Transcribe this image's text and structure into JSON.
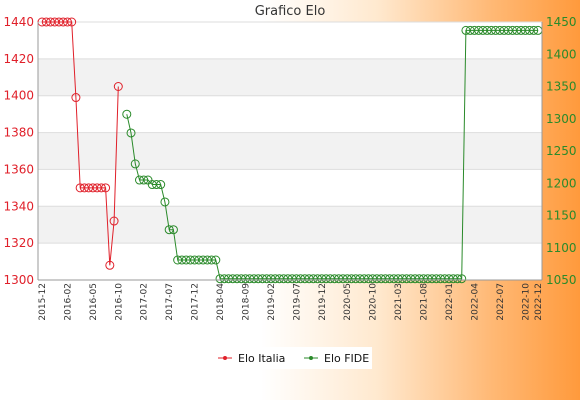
{
  "chart_data": {
    "type": "line",
    "title": "Grafico Elo",
    "xlabel": "",
    "ylabel": "",
    "y_left": {
      "range": [
        1300,
        1440
      ],
      "ticks": [
        1300,
        1320,
        1340,
        1360,
        1380,
        1400,
        1420,
        1440
      ],
      "color": "#e0202a"
    },
    "y_right": {
      "range": [
        1050,
        1450
      ],
      "ticks": [
        1050,
        1100,
        1150,
        1200,
        1250,
        1300,
        1350,
        1400,
        1450
      ],
      "color": "#2a8a2a"
    },
    "x_count": 118,
    "x_ticks": [
      {
        "i": 0,
        "label": "2015-12"
      },
      {
        "i": 6,
        "label": "2016-02"
      },
      {
        "i": 12,
        "label": "2016-05"
      },
      {
        "i": 18,
        "label": "2016-10"
      },
      {
        "i": 24,
        "label": "2017-02"
      },
      {
        "i": 30,
        "label": "2017-07"
      },
      {
        "i": 36,
        "label": "2017-12"
      },
      {
        "i": 42,
        "label": "2018-04"
      },
      {
        "i": 48,
        "label": "2018-09"
      },
      {
        "i": 54,
        "label": "2019-02"
      },
      {
        "i": 60,
        "label": "2019-07"
      },
      {
        "i": 66,
        "label": "2019-12"
      },
      {
        "i": 72,
        "label": "2020-05"
      },
      {
        "i": 78,
        "label": "2020-10"
      },
      {
        "i": 84,
        "label": "2021-03"
      },
      {
        "i": 90,
        "label": "2021-08"
      },
      {
        "i": 96,
        "label": "2022-01"
      },
      {
        "i": 102,
        "label": "2022-04"
      },
      {
        "i": 108,
        "label": "2022-07"
      },
      {
        "i": 114,
        "label": "2022-10"
      },
      {
        "i": 117,
        "label": "2022-12"
      }
    ],
    "grid": true,
    "legend_position": "bottom-center",
    "series": [
      {
        "name": "Elo Italia",
        "axis": "left",
        "color": "#e0202a",
        "points": [
          [
            0,
            1440
          ],
          [
            1,
            1440
          ],
          [
            2,
            1440
          ],
          [
            3,
            1440
          ],
          [
            4,
            1440
          ],
          [
            5,
            1440
          ],
          [
            6,
            1440
          ],
          [
            7,
            1440
          ],
          [
            8,
            1399
          ],
          [
            9,
            1350
          ],
          [
            10,
            1350
          ],
          [
            11,
            1350
          ],
          [
            12,
            1350
          ],
          [
            13,
            1350
          ],
          [
            14,
            1350
          ],
          [
            15,
            1350
          ],
          [
            16,
            1308
          ],
          [
            17,
            1332
          ],
          [
            18,
            1405
          ]
        ]
      },
      {
        "name": "Elo FIDE",
        "axis": "right",
        "color": "#2a8a2a",
        "points": [
          [
            20,
            1307
          ],
          [
            21,
            1278
          ],
          [
            22,
            1230
          ],
          [
            23,
            1205
          ],
          [
            24,
            1205
          ],
          [
            25,
            1205
          ],
          [
            26,
            1198
          ],
          [
            27,
            1198
          ],
          [
            28,
            1198
          ],
          [
            29,
            1171
          ],
          [
            30,
            1128
          ],
          [
            31,
            1128
          ],
          [
            32,
            1081
          ],
          [
            33,
            1081
          ],
          [
            34,
            1081
          ],
          [
            35,
            1081
          ],
          [
            36,
            1081
          ],
          [
            37,
            1081
          ],
          [
            38,
            1081
          ],
          [
            39,
            1081
          ],
          [
            40,
            1081
          ],
          [
            41,
            1081
          ],
          [
            42,
            1052
          ],
          [
            43,
            1052
          ],
          [
            44,
            1052
          ],
          [
            45,
            1052
          ],
          [
            46,
            1052
          ],
          [
            47,
            1052
          ],
          [
            48,
            1052
          ],
          [
            49,
            1052
          ],
          [
            50,
            1052
          ],
          [
            51,
            1052
          ],
          [
            52,
            1052
          ],
          [
            53,
            1052
          ],
          [
            54,
            1052
          ],
          [
            55,
            1052
          ],
          [
            56,
            1052
          ],
          [
            57,
            1052
          ],
          [
            58,
            1052
          ],
          [
            59,
            1052
          ],
          [
            60,
            1052
          ],
          [
            61,
            1052
          ],
          [
            62,
            1052
          ],
          [
            63,
            1052
          ],
          [
            64,
            1052
          ],
          [
            65,
            1052
          ],
          [
            66,
            1052
          ],
          [
            67,
            1052
          ],
          [
            68,
            1052
          ],
          [
            69,
            1052
          ],
          [
            70,
            1052
          ],
          [
            71,
            1052
          ],
          [
            72,
            1052
          ],
          [
            73,
            1052
          ],
          [
            74,
            1052
          ],
          [
            75,
            1052
          ],
          [
            76,
            1052
          ],
          [
            77,
            1052
          ],
          [
            78,
            1052
          ],
          [
            79,
            1052
          ],
          [
            80,
            1052
          ],
          [
            81,
            1052
          ],
          [
            82,
            1052
          ],
          [
            83,
            1052
          ],
          [
            84,
            1052
          ],
          [
            85,
            1052
          ],
          [
            86,
            1052
          ],
          [
            87,
            1052
          ],
          [
            88,
            1052
          ],
          [
            89,
            1052
          ],
          [
            90,
            1052
          ],
          [
            91,
            1052
          ],
          [
            92,
            1052
          ],
          [
            93,
            1052
          ],
          [
            94,
            1052
          ],
          [
            95,
            1052
          ],
          [
            96,
            1052
          ],
          [
            97,
            1052
          ],
          [
            98,
            1052
          ],
          [
            99,
            1052
          ],
          [
            100,
            1437
          ],
          [
            101,
            1437
          ],
          [
            102,
            1437
          ],
          [
            103,
            1437
          ],
          [
            104,
            1437
          ],
          [
            105,
            1437
          ],
          [
            106,
            1437
          ],
          [
            107,
            1437
          ],
          [
            108,
            1437
          ],
          [
            109,
            1437
          ],
          [
            110,
            1437
          ],
          [
            111,
            1437
          ],
          [
            112,
            1437
          ],
          [
            113,
            1437
          ],
          [
            114,
            1437
          ],
          [
            115,
            1437
          ],
          [
            116,
            1437
          ],
          [
            117,
            1437
          ]
        ]
      }
    ]
  }
}
